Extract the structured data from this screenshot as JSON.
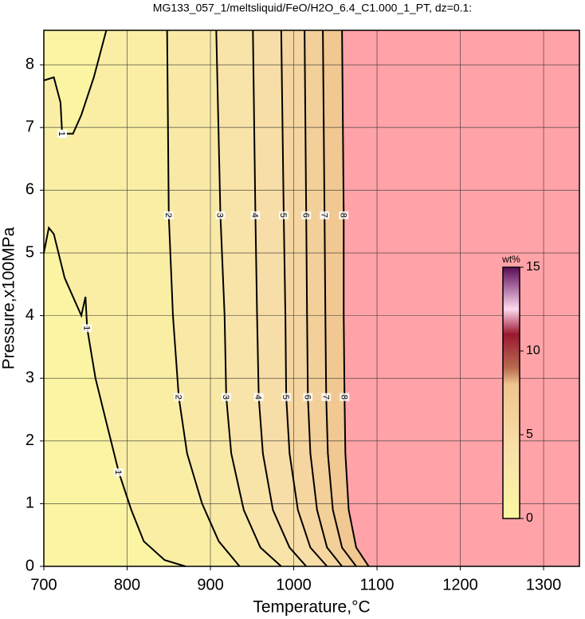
{
  "chart_data": {
    "type": "contour",
    "title": "MG133_057_1/meltsliquid/FeO/H2O_6.4_C1.000_1_PT, dz=0.1:",
    "x_label": "Temperature,°C",
    "y_label": "Pressure,x100MPa",
    "xlim": [
      700,
      1343
    ],
    "ylim": [
      0,
      8.55
    ],
    "xticks": [
      700,
      800,
      900,
      1000,
      1100,
      1200,
      1300
    ],
    "yticks": [
      0,
      1,
      2,
      3,
      4,
      5,
      6,
      7,
      8
    ],
    "grid": true,
    "saturated_color": "#ffa3a8",
    "colormap": [
      [
        0,
        "#fbf7a2"
      ],
      [
        4,
        "#f8e0aa"
      ],
      [
        8,
        "#f0c48e"
      ],
      [
        9,
        "#b86a50"
      ],
      [
        11,
        "#9a1830"
      ],
      [
        12.5,
        "#ffd8ee"
      ],
      [
        15,
        "#5a0a58"
      ]
    ],
    "colorbar": {
      "label": "wt%",
      "lim": [
        0,
        15
      ],
      "ticks": [
        0,
        5,
        10,
        15
      ]
    },
    "contours": [
      {
        "level": 1,
        "x": [
          700,
          712,
          720,
          722,
          735,
          745,
          760,
          775
        ],
        "y": [
          7.75,
          7.8,
          7.4,
          6.9,
          6.9,
          7.2,
          7.8,
          8.55
        ]
      },
      {
        "level": 1,
        "x": [
          700,
          706,
          712,
          725,
          745,
          750,
          752,
          762,
          775,
          790,
          805,
          820,
          845,
          870
        ],
        "y": [
          5.0,
          5.4,
          5.3,
          4.6,
          4.0,
          4.3,
          3.8,
          3.0,
          2.3,
          1.5,
          0.9,
          0.4,
          0.1,
          0
        ]
      },
      {
        "level": 2,
        "x": [
          848,
          850,
          855,
          862,
          872,
          890,
          910,
          935
        ],
        "y": [
          8.55,
          5.6,
          4,
          2.7,
          1.8,
          1,
          0.4,
          0
        ]
      },
      {
        "level": 3,
        "x": [
          907,
          912,
          917,
          919,
          925,
          940,
          960,
          985
        ],
        "y": [
          8.55,
          5.6,
          4,
          2.7,
          1.8,
          0.9,
          0.3,
          0
        ]
      },
      {
        "level": 4,
        "x": [
          951,
          954,
          956,
          958,
          963,
          975,
          995,
          1015
        ],
        "y": [
          8.55,
          5.6,
          4,
          2.7,
          1.8,
          0.9,
          0.3,
          0
        ]
      },
      {
        "level": 5,
        "x": [
          985,
          988,
          990,
          991,
          995,
          1005,
          1020,
          1040
        ],
        "y": [
          8.55,
          5.6,
          4,
          2.7,
          1.8,
          0.9,
          0.3,
          0
        ]
      },
      {
        "level": 6,
        "x": [
          1013,
          1015,
          1016,
          1017,
          1020,
          1028,
          1040,
          1058
        ],
        "y": [
          8.55,
          5.6,
          4,
          2.7,
          1.8,
          0.9,
          0.3,
          0
        ]
      },
      {
        "level": 7,
        "x": [
          1035,
          1037,
          1038,
          1039,
          1041,
          1047,
          1058,
          1075
        ],
        "y": [
          8.55,
          5.6,
          4,
          2.7,
          1.8,
          0.9,
          0.3,
          0
        ]
      },
      {
        "level": 8,
        "x": [
          1058,
          1060,
          1060,
          1061,
          1062,
          1066,
          1075,
          1090
        ],
        "y": [
          8.55,
          5.6,
          4,
          2.7,
          1.8,
          0.9,
          0.3,
          0
        ]
      }
    ]
  }
}
